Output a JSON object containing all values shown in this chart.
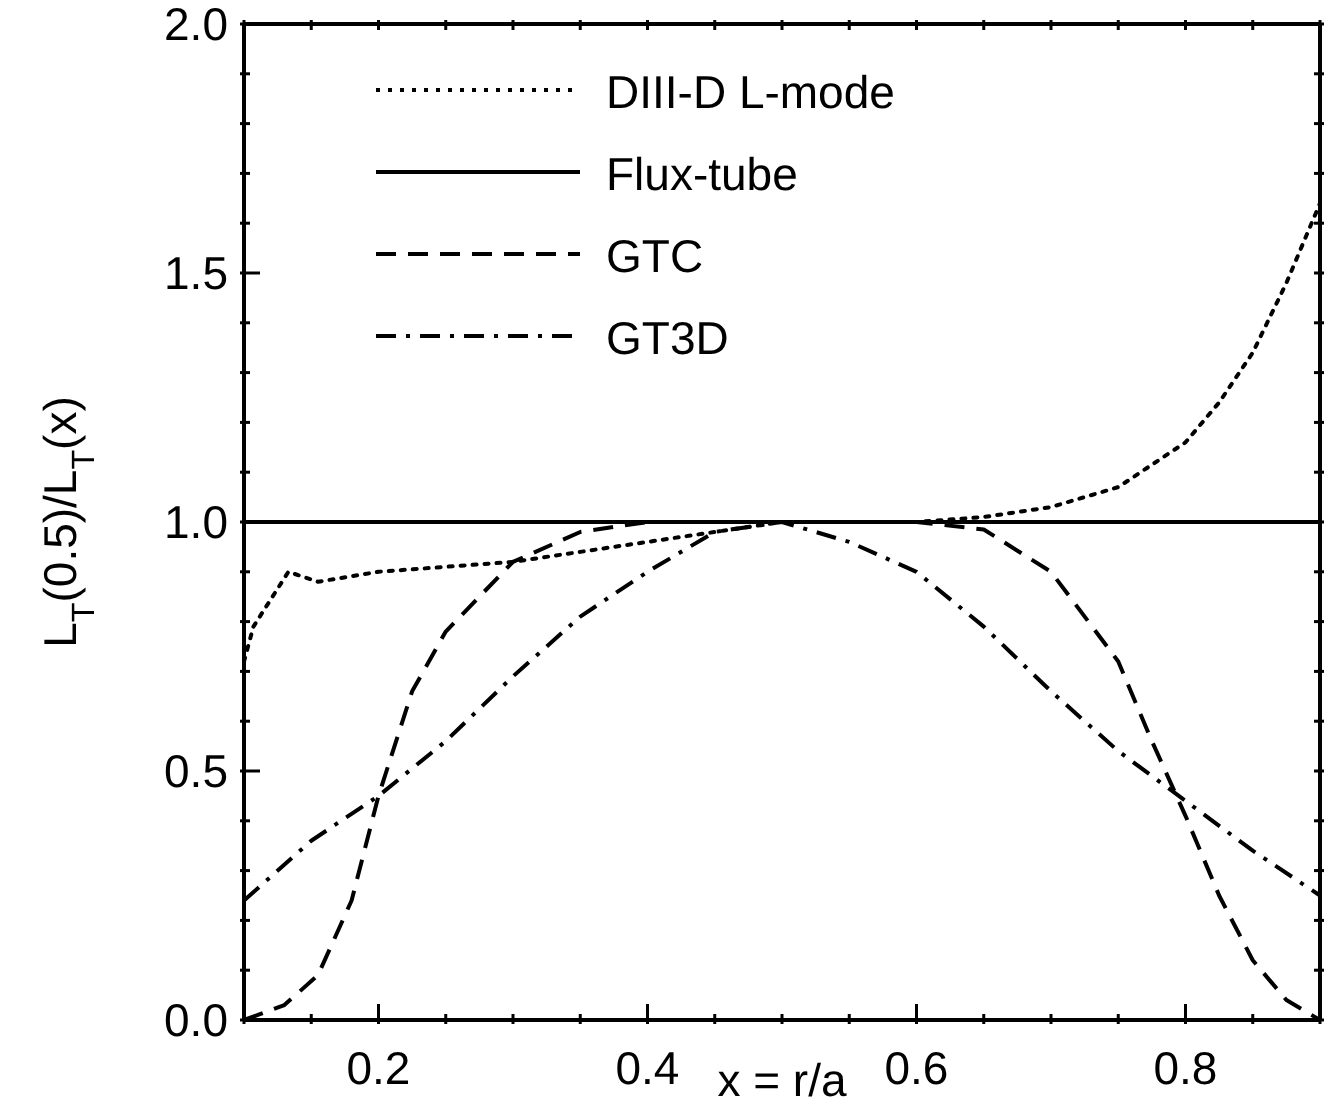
{
  "chart_data": {
    "type": "line",
    "xlabel": "x = r/a",
    "ylabel": "L$_{T}$(0.5)/L$_{T}$(x)",
    "xlim": [
      0.1,
      0.9
    ],
    "ylim": [
      0,
      2
    ],
    "xticks": [
      {
        "value": 0.1,
        "label": null
      },
      {
        "value": 0.15,
        "label": null
      },
      0.2,
      {
        "value": 0.25,
        "label": null
      },
      {
        "value": 0.3,
        "label": null
      },
      {
        "value": 0.35,
        "label": null
      },
      0.4,
      {
        "value": 0.45,
        "label": null
      },
      {
        "value": 0.5,
        "label": null
      },
      {
        "value": 0.55,
        "label": null
      },
      0.6,
      {
        "value": 0.65,
        "label": null
      },
      {
        "value": 0.7,
        "label": null
      },
      {
        "value": 0.75,
        "label": null
      },
      0.8,
      {
        "value": 0.85,
        "label": null
      },
      {
        "value": 0.9,
        "label": null
      }
    ],
    "yticks": [
      {
        "value": 0,
        "label": "0.0"
      },
      {
        "value": 0.1,
        "label": null
      },
      {
        "value": 0.2,
        "label": null
      },
      {
        "value": 0.3,
        "label": null
      },
      {
        "value": 0.4,
        "label": null
      },
      0.5,
      {
        "value": 0.6,
        "label": null
      },
      {
        "value": 0.7,
        "label": null
      },
      {
        "value": 0.8,
        "label": null
      },
      {
        "value": 0.9,
        "label": null
      },
      {
        "value": 1,
        "label": "1.0"
      },
      {
        "value": 1.1,
        "label": null
      },
      {
        "value": 1.2,
        "label": null
      },
      {
        "value": 1.3,
        "label": null
      },
      {
        "value": 1.4,
        "label": null
      },
      1.5,
      {
        "value": 1.6,
        "label": null
      },
      {
        "value": 1.7,
        "label": null
      },
      {
        "value": 1.8,
        "label": null
      },
      {
        "value": 1.9,
        "label": null
      },
      {
        "value": 2,
        "label": "2.0"
      }
    ],
    "legend": "top left",
    "marker": "none",
    "series": [
      {
        "name": "DIII-D L-mode",
        "color": "#000000",
        "line_style": "dotted",
        "x": [
          0.1,
          0.107,
          0.133,
          0.155,
          0.2,
          0.25,
          0.3,
          0.35,
          0.4,
          0.45,
          0.5,
          0.55,
          0.6,
          0.65,
          0.7,
          0.75,
          0.8,
          0.825,
          0.85,
          0.875,
          0.9
        ],
        "values": [
          0.72,
          0.79,
          0.9,
          0.88,
          0.9,
          0.91,
          0.92,
          0.94,
          0.96,
          0.98,
          1.0,
          1.0,
          1.0,
          1.01,
          1.03,
          1.07,
          1.16,
          1.24,
          1.34,
          1.48,
          1.64
        ]
      },
      {
        "name": "Flux-tube",
        "color": "#000000",
        "line_style": "solid",
        "x": [
          0.1,
          0.9
        ],
        "values": [
          1.0,
          1.0
        ]
      },
      {
        "name": "GTC",
        "color": "#000000",
        "line_style": "dashed",
        "x": [
          0.1,
          0.13,
          0.155,
          0.18,
          0.2,
          0.225,
          0.25,
          0.3,
          0.35,
          0.4,
          0.5,
          0.6,
          0.65,
          0.7,
          0.75,
          0.775,
          0.8,
          0.825,
          0.85,
          0.875,
          0.9
        ],
        "values": [
          0.0,
          0.03,
          0.09,
          0.24,
          0.45,
          0.66,
          0.78,
          0.92,
          0.98,
          1.0,
          1.0,
          1.0,
          0.985,
          0.9,
          0.72,
          0.56,
          0.41,
          0.25,
          0.12,
          0.04,
          0.0
        ]
      },
      {
        "name": "GT3D",
        "color": "#000000",
        "line_style": "dashdot",
        "x": [
          0.1,
          0.15,
          0.2,
          0.25,
          0.3,
          0.35,
          0.4,
          0.45,
          0.5,
          0.55,
          0.6,
          0.65,
          0.7,
          0.75,
          0.8,
          0.85,
          0.9
        ],
        "values": [
          0.24,
          0.36,
          0.45,
          0.56,
          0.69,
          0.81,
          0.9,
          0.98,
          1.0,
          0.96,
          0.9,
          0.79,
          0.66,
          0.54,
          0.44,
          0.34,
          0.25
        ]
      }
    ]
  }
}
